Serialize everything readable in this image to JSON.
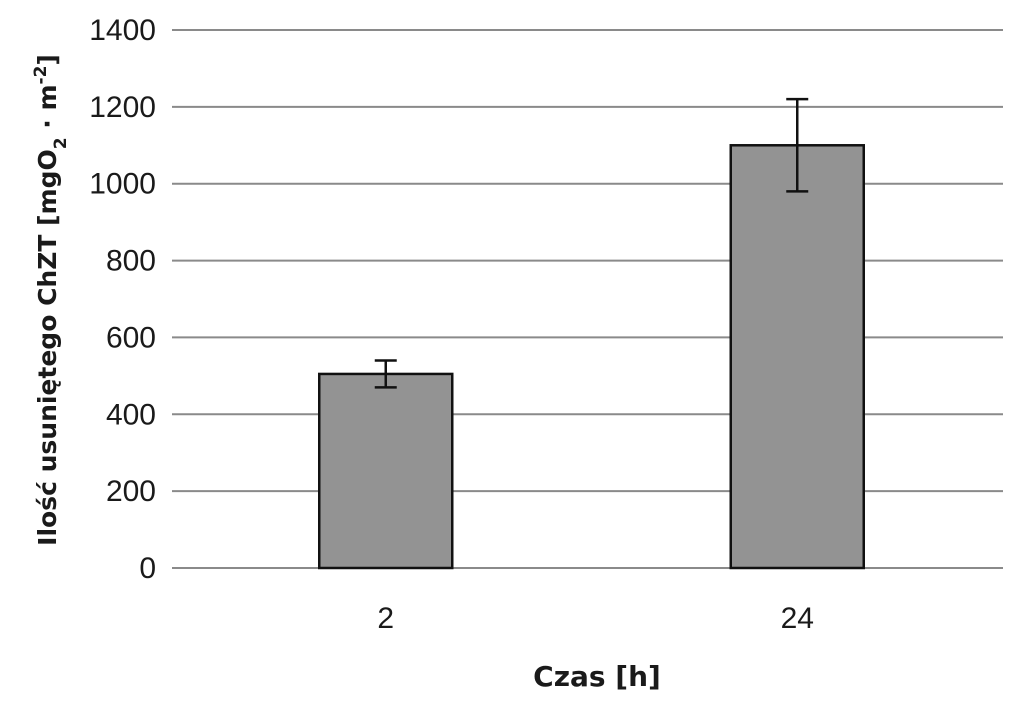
{
  "chart_data": {
    "type": "bar",
    "categories": [
      "2",
      "24"
    ],
    "values": [
      505,
      1100
    ],
    "errors": [
      35,
      120
    ],
    "xlabel": "Czas [h]",
    "ylabel": {
      "main": "Ilość usuniętego ChZT [mgO",
      "sub": "2",
      "mid": " · m",
      "sup": "-2",
      "end": "]"
    },
    "ylim": [
      0,
      1400
    ],
    "yticks": [
      0,
      200,
      400,
      600,
      800,
      1000,
      1200,
      1400
    ],
    "grid": true,
    "legend": "none",
    "colors": {
      "bar_fill": "#939393",
      "bar_stroke": "#111111",
      "grid": "#8a8a8a",
      "axis": "#8a8a8a",
      "error_bar": "#111111"
    }
  }
}
